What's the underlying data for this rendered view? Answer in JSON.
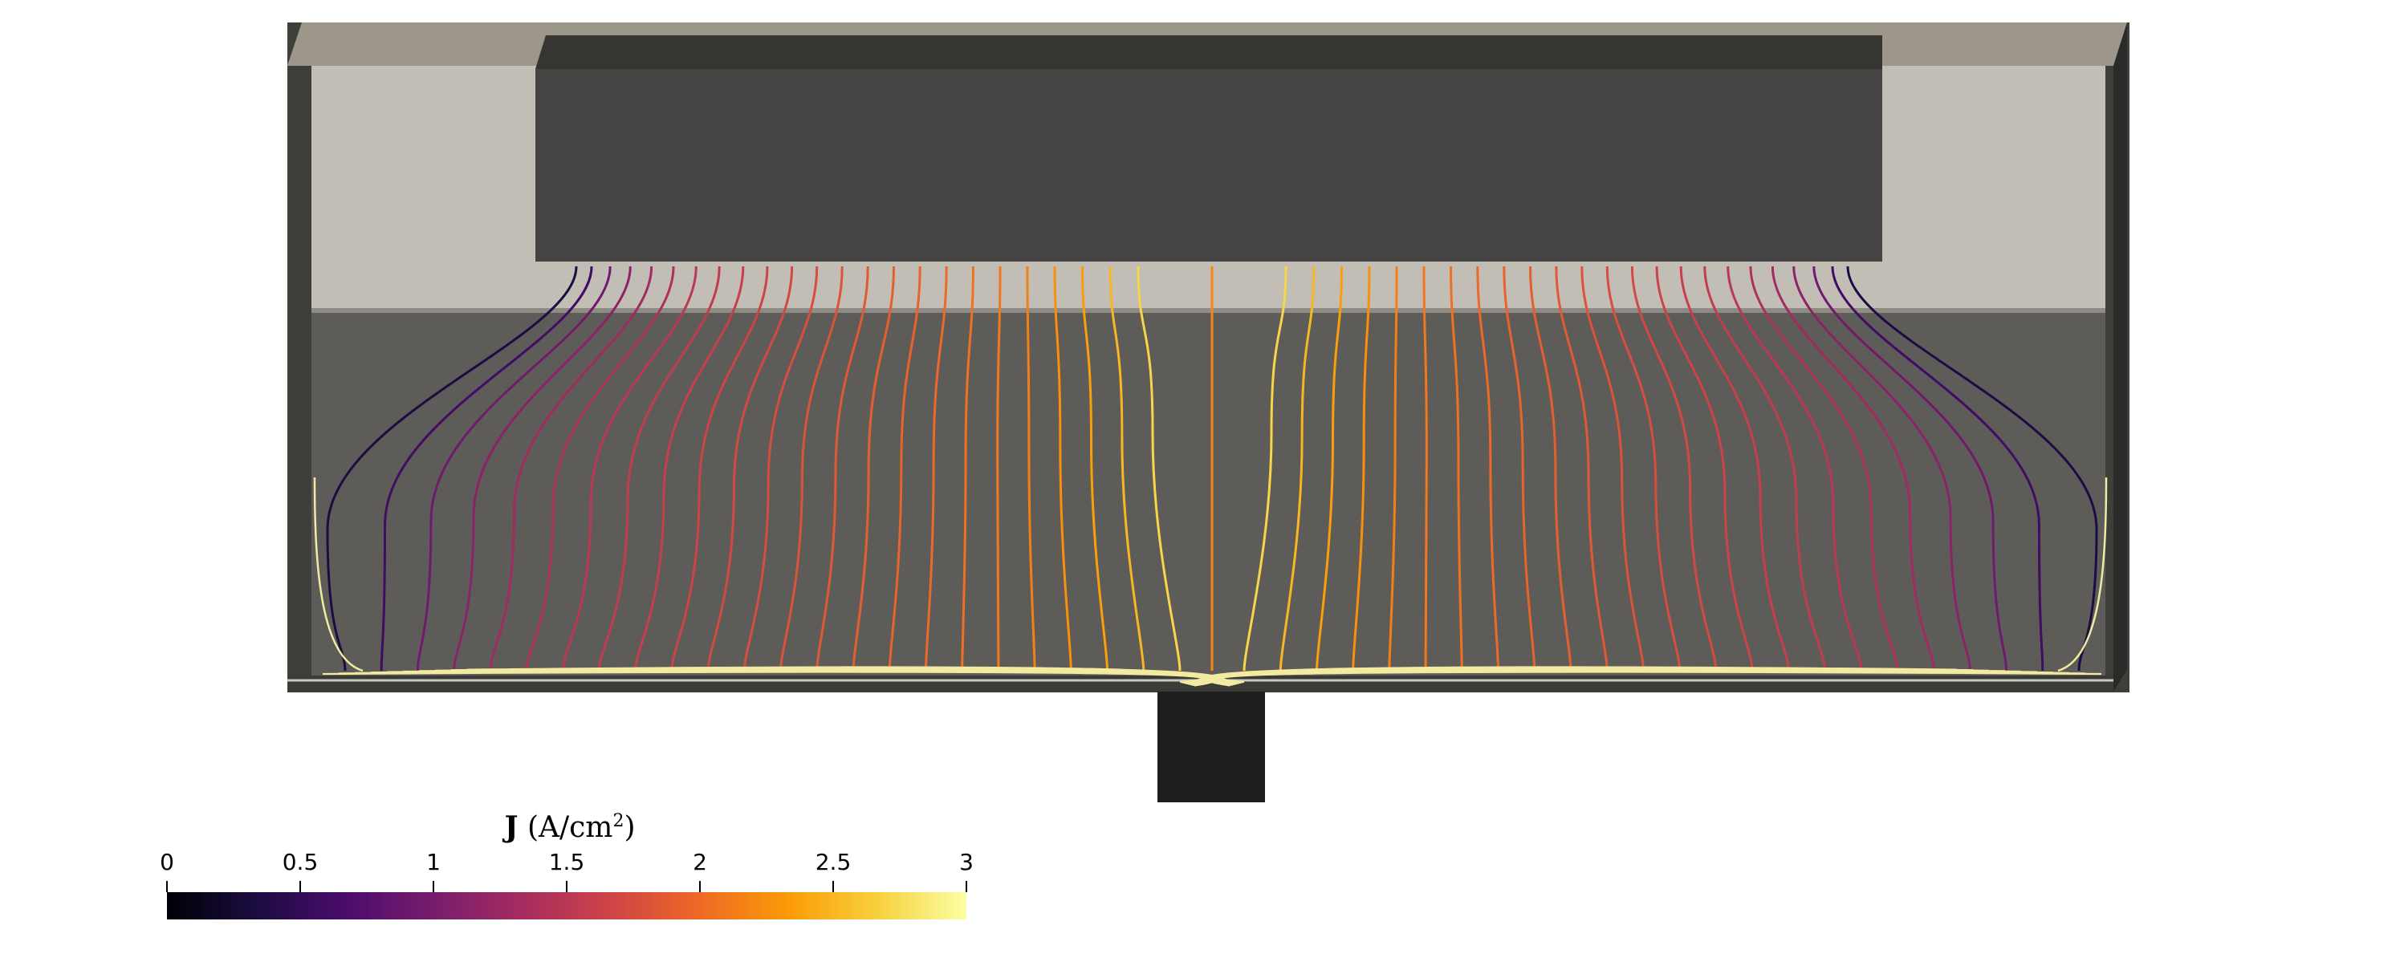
{
  "colorbar": {
    "title_symbol": "J",
    "title_unit": " (A/cm",
    "title_exponent": "2",
    "title_close": ")",
    "min": 0,
    "max": 3,
    "ticks": [
      "0",
      "0.5",
      "1",
      "1.5",
      "2",
      "2.5",
      "3"
    ],
    "colormap": "inferno",
    "stops": [
      "#000004",
      "#1b0c41",
      "#4a0c6b",
      "#781c6d",
      "#a52c60",
      "#cf4446",
      "#ed6925",
      "#fb9b06",
      "#f7d13d",
      "#fcffa4"
    ]
  },
  "colors": {
    "wall_outer": "#3e3f3a",
    "wall_top": "#9c978a",
    "upper_chamber": "#c2beb6",
    "lower_chamber": "#5e5c58",
    "anode_block": "#454442",
    "anode_top": "#363532",
    "cathode_collector": "#1e1e1c",
    "bottom_streamline": "#f2eaa0"
  },
  "streamlines": {
    "count_per_side": 24,
    "current_density_values": [
      0.35,
      0.6,
      0.95,
      1.15,
      1.3,
      1.4,
      1.5,
      1.55,
      1.6,
      1.65,
      1.7,
      1.75,
      1.8,
      1.85,
      1.9,
      1.95,
      2.0,
      2.05,
      2.1,
      2.15,
      2.25,
      2.35,
      2.5,
      2.7
    ]
  }
}
